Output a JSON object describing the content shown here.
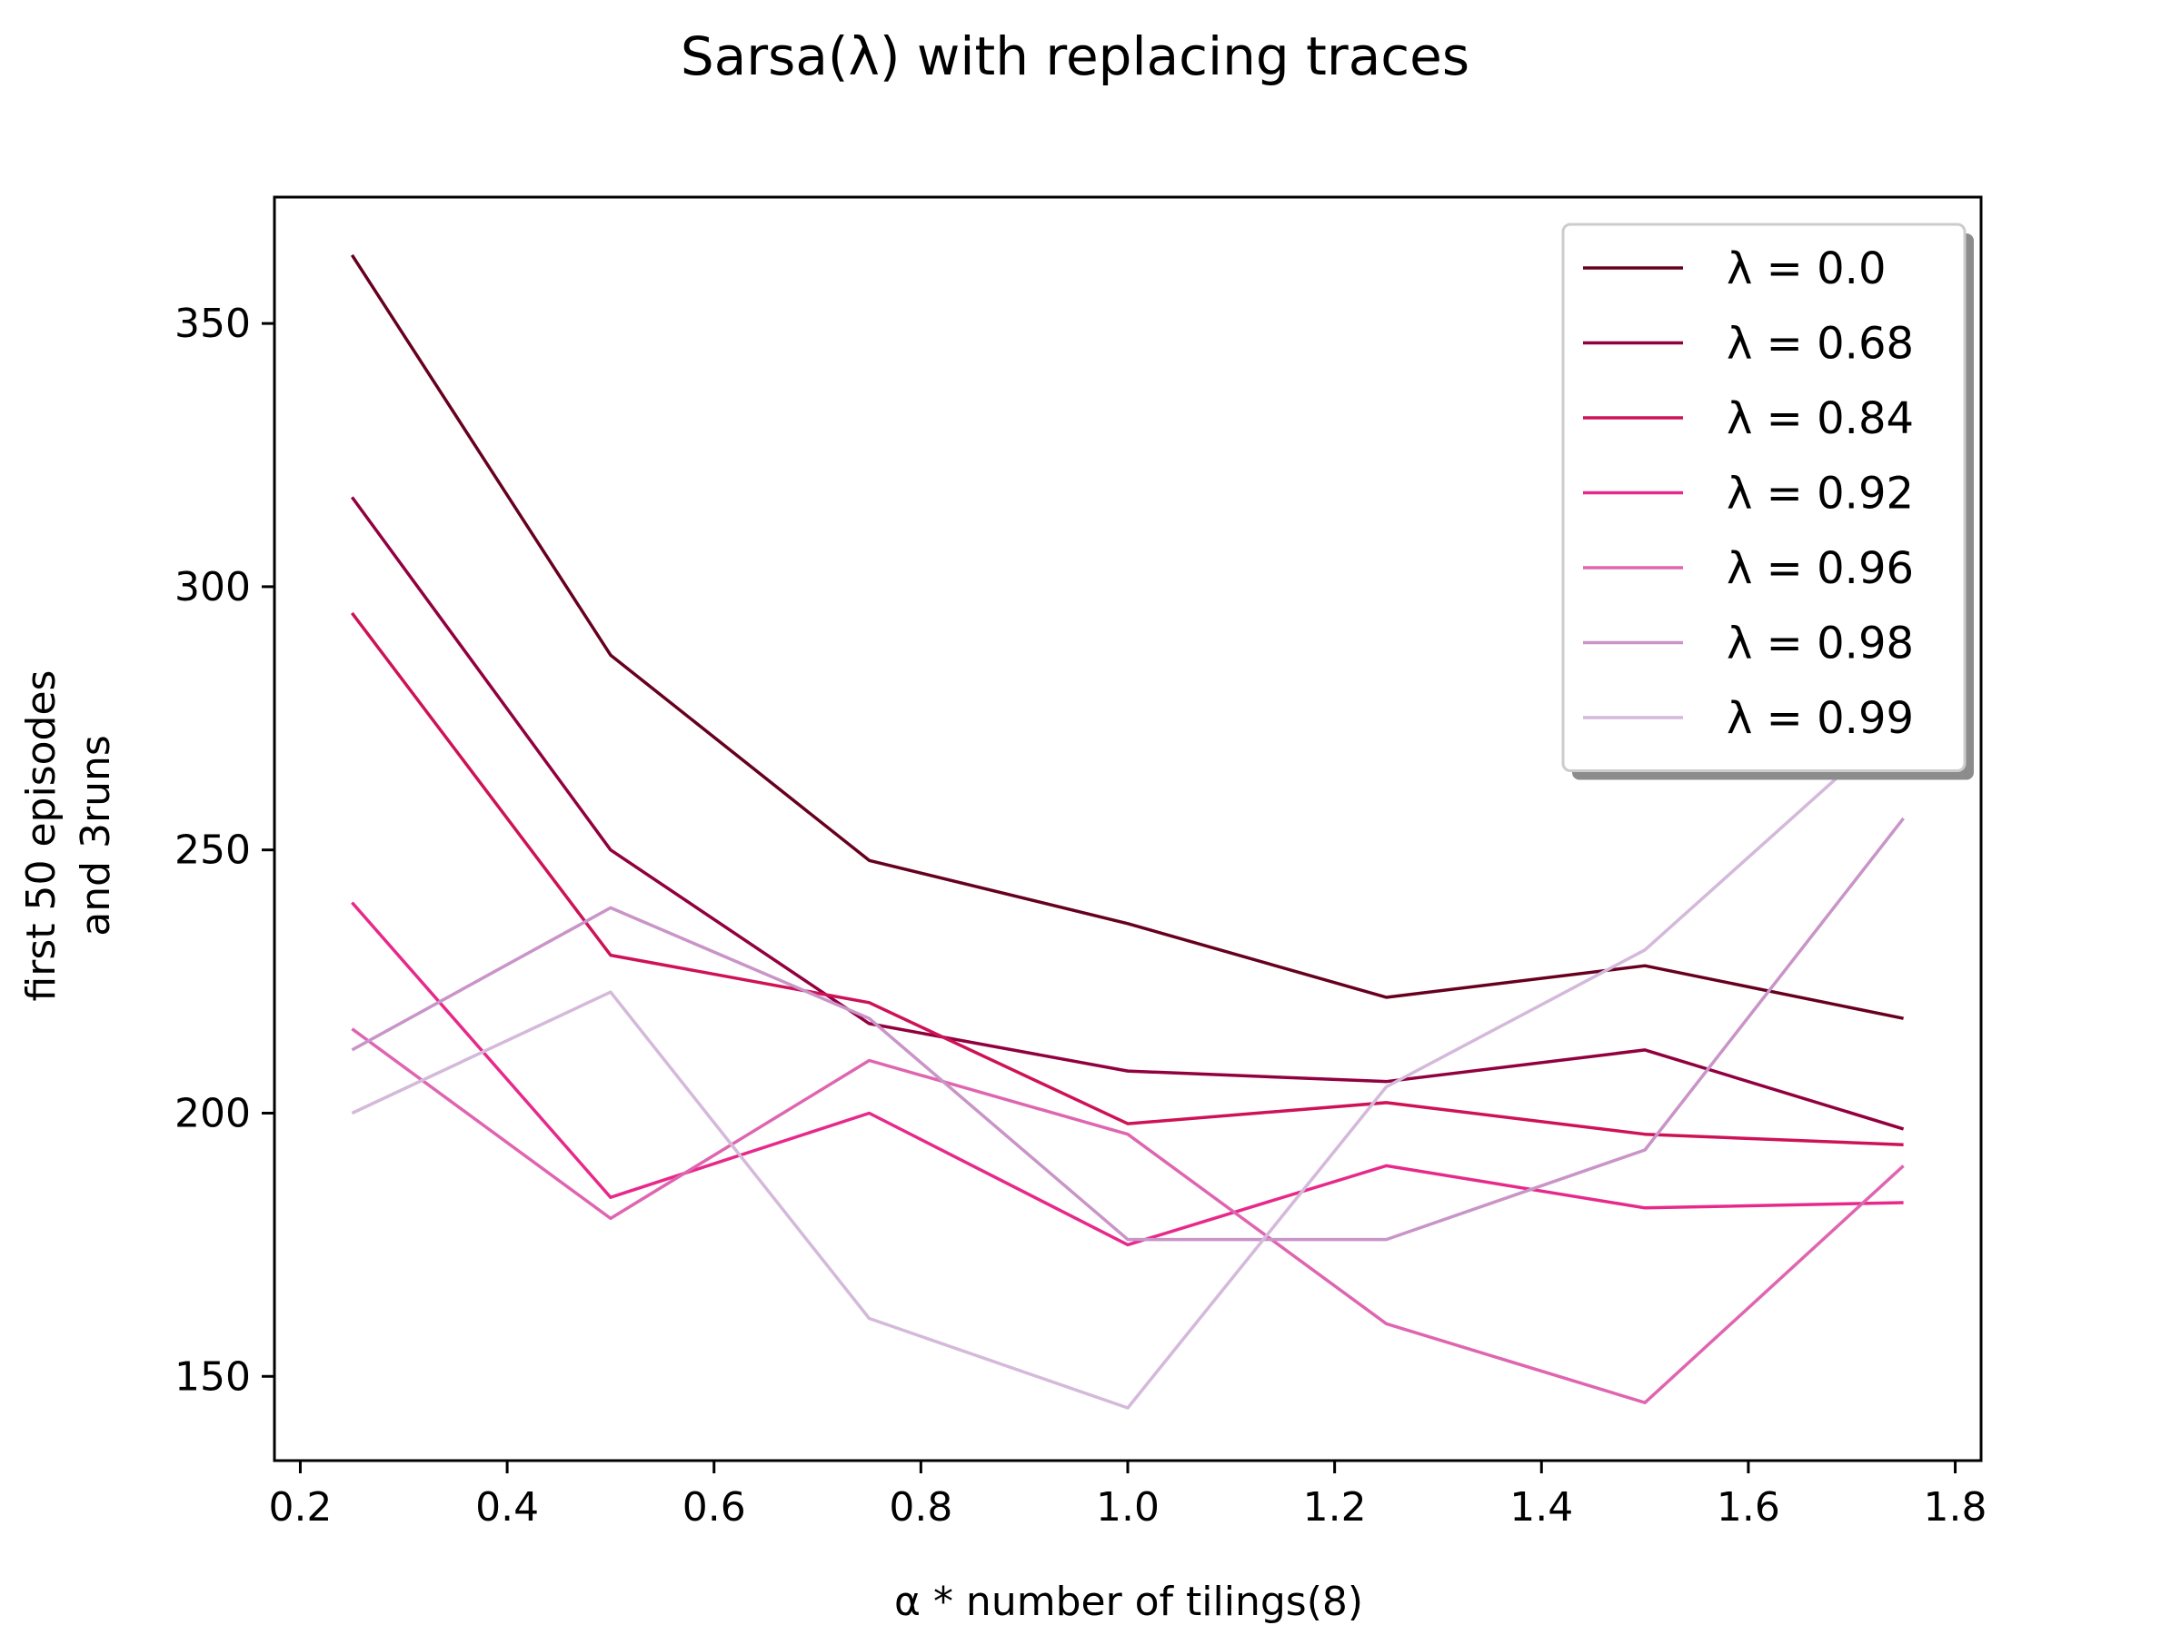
{
  "chart_data": {
    "type": "line",
    "title": "Sarsa(λ) with replacing traces",
    "xlabel": "α * number of tilings(8)",
    "ylabel_lines": [
      "first 50 episodes",
      "and 3runs"
    ],
    "xlim": [
      0.175,
      1.825
    ],
    "ylim": [
      134,
      374
    ],
    "xticks": [
      0.2,
      0.4,
      0.6,
      0.8,
      1.0,
      1.2,
      1.4,
      1.6,
      1.8
    ],
    "xtick_labels": [
      "0.2",
      "0.4",
      "0.6",
      "0.8",
      "1.0",
      "1.2",
      "1.4",
      "1.6",
      "1.8"
    ],
    "yticks": [
      150,
      200,
      250,
      300,
      350
    ],
    "ytick_labels": [
      "150",
      "200",
      "250",
      "300",
      "350"
    ],
    "grid": false,
    "legend_position": "top-right",
    "x": [
      0.25,
      0.5,
      0.75,
      1.0,
      1.25,
      1.5,
      1.75
    ],
    "series": [
      {
        "name": "λ = 0.0",
        "color": "#67001f",
        "values": [
          363,
          287,
          248,
          236,
          222,
          228,
          218
        ]
      },
      {
        "name": "λ = 0.68",
        "color": "#91003f",
        "values": [
          317,
          250,
          217,
          208,
          206,
          212,
          197
        ]
      },
      {
        "name": "λ = 0.84",
        "color": "#ce1256",
        "values": [
          295,
          230,
          221,
          198,
          202,
          196,
          194
        ]
      },
      {
        "name": "λ = 0.92",
        "color": "#e7298a",
        "values": [
          240,
          184,
          200,
          175,
          190,
          182,
          183
        ]
      },
      {
        "name": "λ = 0.96",
        "color": "#df65b0",
        "values": [
          216,
          180,
          210,
          196,
          160,
          145,
          190
        ]
      },
      {
        "name": "λ = 0.98",
        "color": "#c994c7",
        "values": [
          212,
          239,
          218,
          176,
          176,
          193,
          256
        ]
      },
      {
        "name": "λ = 0.99",
        "color": "#d4b9da",
        "values": [
          200,
          223,
          161,
          144,
          205,
          231,
          275
        ]
      }
    ]
  }
}
